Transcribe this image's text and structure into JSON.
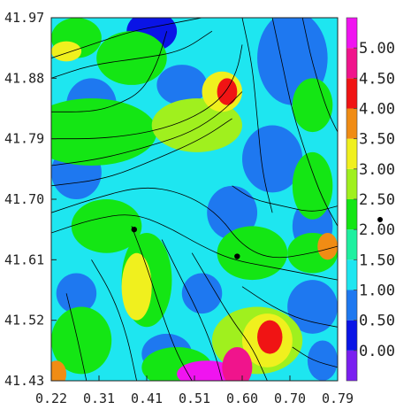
{
  "chart_data": {
    "type": "heatmap",
    "subtype": "vector-field streamlines over filled contours",
    "title": "",
    "xlabel": "",
    "ylabel": "",
    "xlim": [
      0.22,
      0.79
    ],
    "ylim": [
      41.43,
      41.97
    ],
    "x_ticks": [
      "0.22",
      "0.31",
      "0.41",
      "0.51",
      "0.60",
      "0.70",
      "0.79"
    ],
    "y_ticks": [
      "41.43",
      "41.52",
      "41.61",
      "41.70",
      "41.79",
      "41.88",
      "41.97"
    ],
    "colorbar": {
      "range": [
        -0.5,
        5.5
      ],
      "labels": [
        "0.000",
        "0.500",
        "1.000",
        "1.500",
        "2.000",
        "2.500",
        "3.000",
        "3.500",
        "4.000",
        "4.500",
        "5.000"
      ],
      "levels": [
        {
          "from": -0.5,
          "to": 0.0,
          "color": "#7a1ff0"
        },
        {
          "from": 0.0,
          "to": 0.5,
          "color": "#0a14e6"
        },
        {
          "from": 0.5,
          "to": 1.0,
          "color": "#1e78f0"
        },
        {
          "from": 1.0,
          "to": 1.5,
          "color": "#1ee6f0"
        },
        {
          "from": 1.5,
          "to": 2.0,
          "color": "#1ef0a0"
        },
        {
          "from": 2.0,
          "to": 2.5,
          "color": "#14e614"
        },
        {
          "from": 2.5,
          "to": 3.0,
          "color": "#a0f01e"
        },
        {
          "from": 3.0,
          "to": 3.5,
          "color": "#f0f01e"
        },
        {
          "from": 3.5,
          "to": 4.0,
          "color": "#f08c14"
        },
        {
          "from": 4.0,
          "to": 4.5,
          "color": "#f01414"
        },
        {
          "from": 4.5,
          "to": 5.0,
          "color": "#f0148c"
        },
        {
          "from": 5.0,
          "to": 5.5,
          "color": "#f014f0"
        }
      ]
    },
    "background_level": 1.2,
    "regions": [
      {
        "x": 0.7,
        "y": 41.91,
        "rx": 0.07,
        "ry": 0.07,
        "value": 0.6
      },
      {
        "x": 0.42,
        "y": 41.95,
        "rx": 0.05,
        "ry": 0.03,
        "value": 0.3
      },
      {
        "x": 0.3,
        "y": 41.84,
        "rx": 0.05,
        "ry": 0.04,
        "value": 0.8
      },
      {
        "x": 0.48,
        "y": 41.87,
        "rx": 0.05,
        "ry": 0.03,
        "value": 0.8
      },
      {
        "x": 0.27,
        "y": 41.74,
        "rx": 0.05,
        "ry": 0.04,
        "value": 0.7
      },
      {
        "x": 0.66,
        "y": 41.76,
        "rx": 0.06,
        "ry": 0.05,
        "value": 0.8
      },
      {
        "x": 0.58,
        "y": 41.68,
        "rx": 0.05,
        "ry": 0.04,
        "value": 0.5
      },
      {
        "x": 0.74,
        "y": 41.66,
        "rx": 0.04,
        "ry": 0.04,
        "value": 0.6
      },
      {
        "x": 0.27,
        "y": 41.56,
        "rx": 0.04,
        "ry": 0.03,
        "value": 0.6
      },
      {
        "x": 0.52,
        "y": 41.56,
        "rx": 0.04,
        "ry": 0.03,
        "value": 0.7
      },
      {
        "x": 0.74,
        "y": 41.54,
        "rx": 0.05,
        "ry": 0.04,
        "value": 0.6
      },
      {
        "x": 0.45,
        "y": 41.47,
        "rx": 0.05,
        "ry": 0.03,
        "value": 0.8
      },
      {
        "x": 0.76,
        "y": 41.46,
        "rx": 0.03,
        "ry": 0.03,
        "value": 0.7
      },
      {
        "x": 0.3,
        "y": 41.8,
        "rx": 0.13,
        "ry": 0.05,
        "value": 2.3
      },
      {
        "x": 0.51,
        "y": 41.81,
        "rx": 0.09,
        "ry": 0.04,
        "value": 2.6
      },
      {
        "x": 0.38,
        "y": 41.91,
        "rx": 0.07,
        "ry": 0.04,
        "value": 2.2
      },
      {
        "x": 0.33,
        "y": 41.66,
        "rx": 0.07,
        "ry": 0.04,
        "value": 2.2
      },
      {
        "x": 0.41,
        "y": 41.58,
        "rx": 0.05,
        "ry": 0.07,
        "value": 2.4
      },
      {
        "x": 0.62,
        "y": 41.62,
        "rx": 0.07,
        "ry": 0.04,
        "value": 2.1
      },
      {
        "x": 0.74,
        "y": 41.72,
        "rx": 0.04,
        "ry": 0.05,
        "value": 2.1
      },
      {
        "x": 0.74,
        "y": 41.62,
        "rx": 0.05,
        "ry": 0.03,
        "value": 2.2
      },
      {
        "x": 0.28,
        "y": 41.49,
        "rx": 0.06,
        "ry": 0.05,
        "value": 2.3
      },
      {
        "x": 0.63,
        "y": 41.49,
        "rx": 0.09,
        "ry": 0.05,
        "value": 2.5
      },
      {
        "x": 0.47,
        "y": 41.45,
        "rx": 0.07,
        "ry": 0.03,
        "value": 2.3
      },
      {
        "x": 0.27,
        "y": 41.94,
        "rx": 0.05,
        "ry": 0.03,
        "value": 2.2
      },
      {
        "x": 0.74,
        "y": 41.84,
        "rx": 0.04,
        "ry": 0.04,
        "value": 2.0
      },
      {
        "x": 0.39,
        "y": 41.57,
        "rx": 0.03,
        "ry": 0.05,
        "value": 3.2
      },
      {
        "x": 0.56,
        "y": 41.86,
        "rx": 0.04,
        "ry": 0.03,
        "value": 3.3
      },
      {
        "x": 0.25,
        "y": 41.92,
        "rx": 0.03,
        "ry": 0.015,
        "value": 3.1
      },
      {
        "x": 0.65,
        "y": 41.49,
        "rx": 0.05,
        "ry": 0.04,
        "value": 3.4
      },
      {
        "x": 0.77,
        "y": 41.63,
        "rx": 0.02,
        "ry": 0.02,
        "value": 3.7
      },
      {
        "x": 0.57,
        "y": 41.86,
        "rx": 0.02,
        "ry": 0.02,
        "value": 4.1
      },
      {
        "x": 0.655,
        "y": 41.495,
        "rx": 0.025,
        "ry": 0.025,
        "value": 4.1
      },
      {
        "x": 0.23,
        "y": 41.44,
        "rx": 0.02,
        "ry": 0.02,
        "value": 3.8
      },
      {
        "x": 0.53,
        "y": 41.44,
        "rx": 0.06,
        "ry": 0.02,
        "value": 5.2
      },
      {
        "x": 0.59,
        "y": 41.45,
        "rx": 0.03,
        "ry": 0.03,
        "value": 4.7
      }
    ],
    "streamlines": [
      [
        [
          0.22,
          41.91
        ],
        [
          0.3,
          41.93
        ],
        [
          0.38,
          41.95
        ],
        [
          0.45,
          41.96
        ],
        [
          0.52,
          41.97
        ]
      ],
      [
        [
          0.22,
          41.88
        ],
        [
          0.3,
          41.9
        ],
        [
          0.4,
          41.91
        ],
        [
          0.48,
          41.92
        ],
        [
          0.54,
          41.95
        ]
      ],
      [
        [
          0.22,
          41.79
        ],
        [
          0.32,
          41.79
        ],
        [
          0.42,
          41.8
        ],
        [
          0.5,
          41.82
        ],
        [
          0.56,
          41.85
        ],
        [
          0.59,
          41.89
        ],
        [
          0.6,
          41.93
        ]
      ],
      [
        [
          0.22,
          41.75
        ],
        [
          0.32,
          41.76
        ],
        [
          0.42,
          41.78
        ],
        [
          0.5,
          41.8
        ],
        [
          0.56,
          41.83
        ],
        [
          0.6,
          41.86
        ]
      ],
      [
        [
          0.22,
          41.72
        ],
        [
          0.33,
          41.73
        ],
        [
          0.43,
          41.76
        ],
        [
          0.52,
          41.79
        ],
        [
          0.58,
          41.82
        ]
      ],
      [
        [
          0.22,
          41.68
        ],
        [
          0.3,
          41.7
        ],
        [
          0.4,
          41.72
        ],
        [
          0.48,
          41.71
        ],
        [
          0.55,
          41.68
        ],
        [
          0.6,
          41.63
        ],
        [
          0.66,
          41.61
        ],
        [
          0.74,
          41.62
        ],
        [
          0.79,
          41.63
        ]
      ],
      [
        [
          0.22,
          41.65
        ],
        [
          0.3,
          41.67
        ],
        [
          0.38,
          41.68
        ],
        [
          0.45,
          41.66
        ],
        [
          0.52,
          41.63
        ],
        [
          0.58,
          41.61
        ],
        [
          0.65,
          41.6
        ],
        [
          0.72,
          41.59
        ],
        [
          0.79,
          41.58
        ]
      ],
      [
        [
          0.38,
          41.66
        ],
        [
          0.41,
          41.6
        ],
        [
          0.44,
          41.53
        ],
        [
          0.47,
          41.47
        ],
        [
          0.5,
          41.43
        ]
      ],
      [
        [
          0.3,
          41.61
        ],
        [
          0.34,
          41.56
        ],
        [
          0.37,
          41.5
        ],
        [
          0.39,
          41.43
        ]
      ],
      [
        [
          0.25,
          41.56
        ],
        [
          0.27,
          41.5
        ],
        [
          0.29,
          41.43
        ]
      ],
      [
        [
          0.44,
          41.64
        ],
        [
          0.48,
          41.58
        ],
        [
          0.52,
          41.52
        ],
        [
          0.55,
          41.46
        ],
        [
          0.56,
          41.43
        ]
      ],
      [
        [
          0.5,
          41.62
        ],
        [
          0.54,
          41.57
        ],
        [
          0.58,
          41.52
        ],
        [
          0.62,
          41.48
        ],
        [
          0.65,
          41.43
        ]
      ],
      [
        [
          0.6,
          41.57
        ],
        [
          0.66,
          41.54
        ],
        [
          0.72,
          41.52
        ],
        [
          0.79,
          41.51
        ]
      ],
      [
        [
          0.66,
          41.97
        ],
        [
          0.68,
          41.9
        ],
        [
          0.7,
          41.83
        ],
        [
          0.73,
          41.76
        ],
        [
          0.76,
          41.7
        ],
        [
          0.79,
          41.66
        ]
      ],
      [
        [
          0.6,
          41.97
        ],
        [
          0.62,
          41.9
        ],
        [
          0.63,
          41.82
        ],
        [
          0.64,
          41.74
        ],
        [
          0.66,
          41.68
        ]
      ],
      [
        [
          0.72,
          41.97
        ],
        [
          0.74,
          41.9
        ],
        [
          0.77,
          41.83
        ],
        [
          0.79,
          41.8
        ]
      ],
      [
        [
          0.45,
          41.95
        ],
        [
          0.43,
          41.9
        ],
        [
          0.4,
          41.86
        ],
        [
          0.35,
          41.84
        ],
        [
          0.3,
          41.83
        ],
        [
          0.22,
          41.83
        ]
      ],
      [
        [
          0.7,
          41.48
        ],
        [
          0.74,
          41.46
        ],
        [
          0.79,
          41.45
        ]
      ],
      [
        [
          0.58,
          41.72
        ],
        [
          0.62,
          41.7
        ],
        [
          0.68,
          41.69
        ],
        [
          0.74,
          41.68
        ],
        [
          0.79,
          41.69
        ]
      ]
    ],
    "markers": [
      {
        "x": 0.385,
        "y": 41.655
      },
      {
        "x": 0.59,
        "y": 41.615
      }
    ]
  }
}
